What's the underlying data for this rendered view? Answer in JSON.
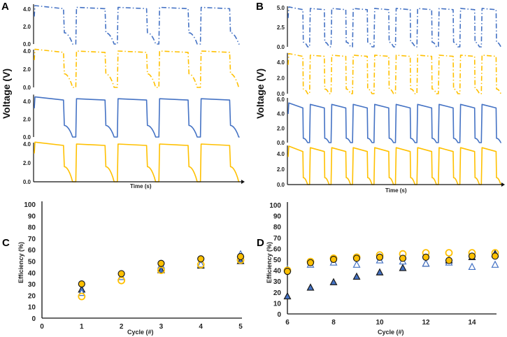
{
  "colors": {
    "blue": "#4472C4",
    "orange": "#FFC000",
    "outline": "#1a1a1a"
  },
  "chart_data": [
    {
      "panel": "A",
      "type": "line",
      "ylabel": "Voltage (V)",
      "xlabel": "Time (s)",
      "cycles": 5,
      "subplots": [
        {
          "color": "blue",
          "style": "dash-dot",
          "yticks": [
            "0.0",
            "2.0",
            "4.0"
          ],
          "ylim": [
            0,
            4.4
          ],
          "plateau_v": 4.2,
          "knee_v": 1.3
        },
        {
          "color": "orange",
          "style": "dash-dot",
          "yticks": [
            "0.0",
            "2.0",
            "4.0"
          ],
          "ylim": [
            0,
            4.0
          ],
          "plateau_v": 4.0,
          "knee_v": 1.5
        },
        {
          "color": "blue",
          "style": "solid",
          "yticks": [
            "0.0",
            "2.0",
            "4.0"
          ],
          "ylim": [
            0,
            4.6
          ],
          "plateau_v": 4.3,
          "knee_v": 1.3
        },
        {
          "color": "orange",
          "style": "solid",
          "yticks": [
            "0.0",
            "2.0",
            "4.0"
          ],
          "ylim": [
            0,
            4.0
          ],
          "plateau_v": 4.0,
          "knee_v": 1.6
        }
      ]
    },
    {
      "panel": "B",
      "type": "line",
      "ylabel": "Voltage (V)",
      "xlabel": "Time (s)",
      "cycles": 10,
      "subplots": [
        {
          "color": "blue",
          "style": "dash-dot",
          "yticks": [
            "0.0",
            "2.5",
            "5.0"
          ],
          "ylim": [
            0,
            5.0
          ],
          "plateau_v": 4.9,
          "knee_v": 0.6
        },
        {
          "color": "orange",
          "style": "dash-dot",
          "yticks": [
            "0.0",
            "2.0",
            "4.0"
          ],
          "ylim": [
            0,
            5.0
          ],
          "plateau_v": 4.9,
          "knee_v": 0.6
        },
        {
          "color": "blue",
          "style": "solid",
          "yticks": [
            "0.0",
            "2.0",
            "4.0",
            "6.0"
          ],
          "ylim": [
            0,
            6.0
          ],
          "plateau_v": 5.3,
          "knee_v": 0.6
        },
        {
          "color": "orange",
          "style": "solid",
          "yticks": [
            "0.0",
            "2.0",
            "4.0"
          ],
          "ylim": [
            0,
            4.9
          ],
          "plateau_v": 4.8,
          "knee_v": 0.9
        }
      ]
    },
    {
      "panel": "C",
      "type": "scatter",
      "xlabel": "Cycle (#)",
      "ylabel": "Efficiency (%)",
      "xlim": [
        0,
        5
      ],
      "ylim": [
        0,
        100
      ],
      "xticks": [
        "0",
        "1",
        "2",
        "3",
        "4",
        "5"
      ],
      "yticks": [
        "0",
        "10",
        "20",
        "30",
        "40",
        "50",
        "60",
        "70",
        "80",
        "90",
        "100"
      ],
      "x": [
        1,
        2,
        3,
        4,
        5
      ],
      "series": [
        {
          "marker": "triangle-filled",
          "color": "blue",
          "values": [
            25,
            36,
            42,
            46,
            50
          ]
        },
        {
          "marker": "triangle-open",
          "color": "blue",
          "values": [
            22,
            36,
            46,
            47,
            56
          ]
        },
        {
          "marker": "circle-open",
          "color": "orange",
          "values": [
            19,
            33,
            42,
            47,
            51
          ]
        },
        {
          "marker": "circle-filled",
          "color": "orange",
          "values": [
            30,
            39,
            48,
            52,
            54
          ]
        }
      ]
    },
    {
      "panel": "D",
      "type": "scatter",
      "xlabel": "Cycle (#)",
      "ylabel": "Efficiency (%)",
      "xlim": [
        6,
        15
      ],
      "ylim": [
        0,
        100
      ],
      "xticks": [
        "6",
        "8",
        "10",
        "12",
        "14"
      ],
      "yticks": [
        "0",
        "10",
        "20",
        "30",
        "40",
        "50",
        "60",
        "70",
        "80",
        "90",
        "100"
      ],
      "x": [
        6,
        7,
        8,
        9,
        10,
        11,
        12,
        13,
        14,
        15
      ],
      "series": [
        {
          "marker": "triangle-filled",
          "color": "blue",
          "values": [
            16,
            24,
            29,
            34,
            38,
            42,
            46,
            49,
            52,
            55
          ]
        },
        {
          "marker": "triangle-open",
          "color": "blue",
          "values": [
            41,
            45,
            47,
            45,
            49,
            48,
            46,
            47,
            43,
            45
          ]
        },
        {
          "marker": "circle-open",
          "color": "orange",
          "values": [
            40,
            48,
            51,
            52,
            54,
            55,
            56,
            56,
            56,
            56
          ]
        },
        {
          "marker": "circle-filled",
          "color": "orange",
          "values": [
            39,
            47,
            50,
            51,
            52,
            51,
            52,
            49,
            53,
            53
          ]
        }
      ]
    }
  ]
}
